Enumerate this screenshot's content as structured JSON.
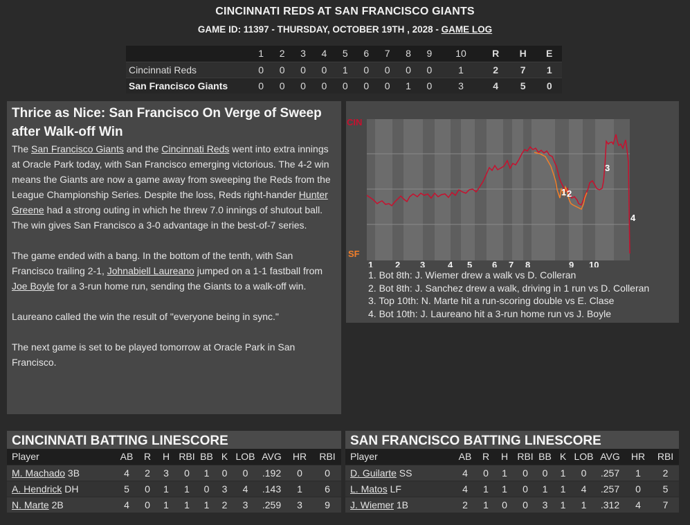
{
  "header": {
    "title": "CINCINNATI REDS AT SAN FRANCISCO GIANTS",
    "game_info": "GAME ID: 11397 - THURSDAY, OCTOBER 19TH , 2028 - ",
    "game_log_link": "GAME LOG"
  },
  "linescore": {
    "columns": [
      "1",
      "2",
      "3",
      "4",
      "5",
      "6",
      "7",
      "8",
      "9",
      "10",
      "R",
      "H",
      "E"
    ],
    "away": {
      "team": "Cincinnati Reds",
      "values": [
        "0",
        "0",
        "0",
        "0",
        "1",
        "0",
        "0",
        "0",
        "0",
        "1",
        "2",
        "7",
        "1"
      ]
    },
    "home": {
      "team": "San Francisco Giants",
      "values": [
        "0",
        "0",
        "0",
        "0",
        "0",
        "0",
        "0",
        "1",
        "0",
        "3",
        "4",
        "5",
        "0"
      ]
    }
  },
  "article": {
    "headline": "Thrice as Nice: San Francisco On Verge of Sweep after Walk-off Win",
    "p1": {
      "t1": "The ",
      "l1": "San Francisco Giants",
      "t2": " and the ",
      "l2": "Cincinnati Reds",
      "t3": " went into extra innings at Oracle Park today, with San Francisco emerging victorious. The 4-2 win means the Giants are now a game away from sweeping the Reds from the League Championship Series. Despite the loss, Reds right-hander ",
      "l3": "Hunter Greene",
      "t4": " had a strong outing in which he threw 7.0 innings of shutout ball. The win gives San Francisco a 3-0 advantage in the best-of-7 series."
    },
    "p2": {
      "t1": "The game ended with a bang. In the bottom of the tenth, with San Francisco trailing 2-1, ",
      "l1": "Johnabiell Laureano",
      "t2": " jumped on a 1-1 fastball from ",
      "l2": "Joe Boyle",
      "t3": " for a 3-run home run, sending the Giants to a walk-off win."
    },
    "p3": "Laureano called the win the result of \"everyone being in sync.\"",
    "p4": "The next game is set to be played tomorrow at Oracle Park in San Francisco."
  },
  "win_prob": {
    "top_label": "CIN",
    "bottom_label": "SF",
    "top_color": "#c8102e",
    "bottom_color": "#f27f2a",
    "inning_labels": [
      "1",
      "2",
      "3",
      "4",
      "5",
      "6",
      "7",
      "8",
      "9",
      "10"
    ],
    "events": [
      "1. Bot 8th: J. Wiemer drew a walk vs D. Colleran",
      "2. Bot 8th: J. Sanchez drew a walk, driving in 1 run vs D. Colleran",
      "3. Top 10th: N. Marte hit a run-scoring double vs E. Clase",
      "4. Bot 10th: J. Laureano hit a 3-run home run vs J. Boyle"
    ],
    "markers": [
      "1",
      "2",
      "3",
      "4"
    ]
  },
  "cin_batting": {
    "title": "CINCINNATI BATTING LINESCORE",
    "columns": [
      "Player",
      "AB",
      "R",
      "H",
      "RBI",
      "BB",
      "K",
      "LOB",
      "AVG",
      "HR",
      "RBI"
    ],
    "rows": [
      {
        "name": "M. Machado",
        "pos": " 3B",
        "stats": [
          "4",
          "2",
          "3",
          "0",
          "1",
          "0",
          "0",
          ".192",
          "0",
          "0"
        ]
      },
      {
        "name": "A. Hendrick",
        "pos": " DH",
        "stats": [
          "5",
          "0",
          "1",
          "1",
          "0",
          "3",
          "4",
          ".143",
          "1",
          "6"
        ]
      },
      {
        "name": "N. Marte",
        "pos": " 2B",
        "stats": [
          "4",
          "0",
          "1",
          "1",
          "1",
          "2",
          "3",
          ".259",
          "3",
          "9"
        ]
      }
    ]
  },
  "sf_batting": {
    "title": "SAN FRANCISCO BATTING LINESCORE",
    "columns": [
      "Player",
      "AB",
      "R",
      "H",
      "RBI",
      "BB",
      "K",
      "LOB",
      "AVG",
      "HR",
      "RBI"
    ],
    "rows": [
      {
        "name": "D. Guilarte",
        "pos": " SS",
        "stats": [
          "4",
          "0",
          "1",
          "0",
          "0",
          "1",
          "0",
          ".257",
          "1",
          "2"
        ]
      },
      {
        "name": "L. Matos",
        "pos": " LF",
        "stats": [
          "4",
          "1",
          "1",
          "0",
          "1",
          "1",
          "4",
          ".257",
          "0",
          "5"
        ]
      },
      {
        "name": "J. Wiemer",
        "pos": " 1B",
        "stats": [
          "2",
          "1",
          "0",
          "0",
          "3",
          "1",
          "1",
          ".312",
          "4",
          "7"
        ]
      }
    ]
  }
}
